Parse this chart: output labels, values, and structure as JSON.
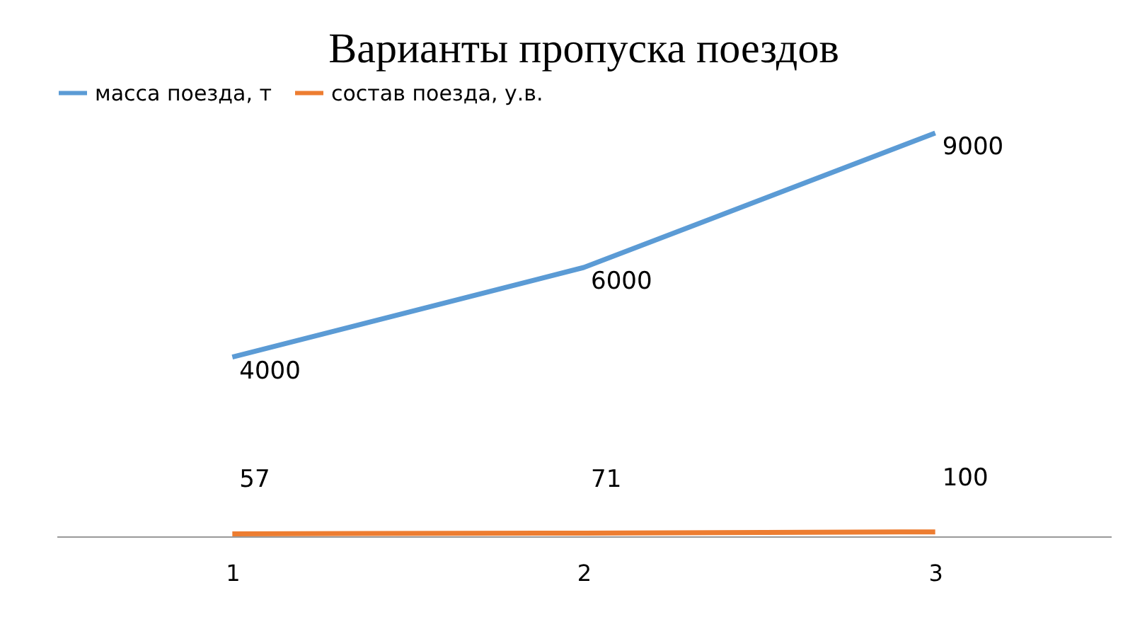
{
  "chart_data": {
    "type": "line",
    "title": "Варианты пропуска поездов",
    "categories": [
      "1",
      "2",
      "3"
    ],
    "series": [
      {
        "name": "масса поезда, т",
        "color": "#5b9bd5",
        "values": [
          4000,
          6000,
          9000
        ]
      },
      {
        "name": "состав поезда, у.в.",
        "color": "#ed7d31",
        "values": [
          57,
          71,
          100
        ]
      }
    ],
    "data_labels": true,
    "legend": "top",
    "grid": false,
    "tick_labels": "x",
    "marker": "none",
    "line_style": "solid"
  }
}
